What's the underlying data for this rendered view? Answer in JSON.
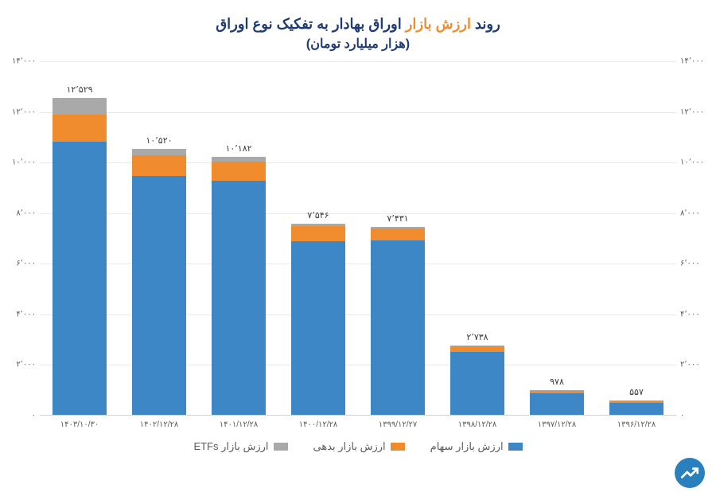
{
  "title": {
    "pre": "روند ",
    "highlight": "ارزش بازار",
    "post": " اوراق بهادار به تفکیک نوع اوراق",
    "fontsize": 18,
    "color": "#1f3b73",
    "highlight_color": "#f08c2e"
  },
  "subtitle": {
    "text": "(هزار میلیارد تومان)",
    "fontsize": 16,
    "color": "#1f3b73"
  },
  "chart": {
    "type": "stacked-bar",
    "ylim": [
      0,
      14000
    ],
    "yticks": [
      0,
      2000,
      4000,
      6000,
      8000,
      10000,
      12000,
      14000
    ],
    "ytick_labels": [
      "۰",
      "۲٬۰۰۰",
      "۴٬۰۰۰",
      "۶٬۰۰۰",
      "۸٬۰۰۰",
      "۱۰٬۰۰۰",
      "۱۲٬۰۰۰",
      "۱۴٬۰۰۰"
    ],
    "grid_color": "#e8e8e8",
    "label_color": "#5a5a5a",
    "label_fontsize": 10,
    "categories": [
      "۱۳۹۶/۱۲/۲۸",
      "۱۳۹۷/۱۲/۲۸",
      "۱۳۹۸/۱۲/۲۸",
      "۱۳۹۹/۱۲/۲۷",
      "۱۴۰۰/۱۲/۲۸",
      "۱۴۰۱/۱۲/۲۸",
      "۱۴۰۲/۱۲/۲۸",
      "۱۴۰۳/۱۰/۳۰"
    ],
    "series": [
      {
        "name": "ارزش بازار سهام",
        "color": "#3d87c6",
        "values": [
          480,
          840,
          2500,
          6900,
          6850,
          9250,
          9450,
          10800
        ]
      },
      {
        "name": "ارزش بازار بدهی",
        "color": "#f08c2e",
        "values": [
          60,
          110,
          210,
          450,
          600,
          750,
          800,
          1050
        ]
      },
      {
        "name": "ارزش بازار ETFs",
        "color": "#a9a9a9",
        "values": [
          17,
          28,
          28,
          81,
          96,
          182,
          270,
          679
        ]
      }
    ],
    "totals": [
      557,
      978,
      2738,
      7431,
      7546,
      10182,
      10520,
      12529
    ],
    "total_labels": [
      "۵۵۷",
      "۹۷۸",
      "۲٬۷۳۸",
      "۷٬۴۳۱",
      "۷٬۵۴۶",
      "۱۰٬۱۸۲",
      "۱۰٬۵۲۰",
      "۱۲٬۵۲۹"
    ],
    "total_label_fontsize": 11,
    "background_color": "#ffffff",
    "bar_width": 0.68
  },
  "legend": {
    "items": [
      {
        "label": "ارزش بازار سهام",
        "color": "#3d87c6"
      },
      {
        "label": "ارزش بازار بدهی",
        "color": "#f08c2e"
      },
      {
        "label": "ارزش بازار ETFs",
        "color": "#a9a9a9"
      }
    ],
    "fontsize": 13
  },
  "logo": {
    "bg_color": "#2a7fbd",
    "arrow_color": "#ffffff"
  }
}
